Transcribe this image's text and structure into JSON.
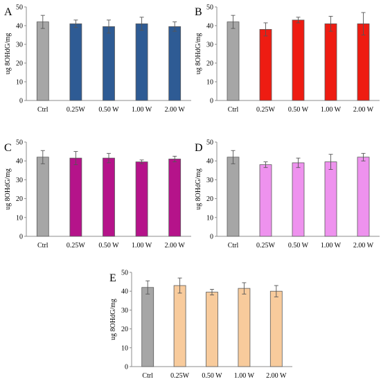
{
  "chart_data": [
    {
      "type": "bar",
      "panel_letter": "A",
      "ylabel": "ug 8OHdG/mg",
      "ylim": [
        0,
        50
      ],
      "yticks": [
        0,
        10,
        20,
        30,
        40,
        50
      ],
      "categories": [
        "Ctrl",
        "0.25W",
        "0.50 W",
        "1.00 W",
        "2.00 W"
      ],
      "values": [
        42,
        41,
        39.5,
        41,
        39.5
      ],
      "errors": [
        3.5,
        2,
        3.5,
        3.5,
        2.5
      ],
      "colors": [
        "#a6a6a6",
        "#2e5b94",
        "#2e5b94",
        "#2e5b94",
        "#2e5b94"
      ],
      "grid": false,
      "legend": "none"
    },
    {
      "type": "bar",
      "panel_letter": "B",
      "ylabel": "ug 8OHdG/mg",
      "ylim": [
        0,
        50
      ],
      "yticks": [
        0,
        10,
        20,
        30,
        40,
        50
      ],
      "categories": [
        "Ctrl",
        "0.25W",
        "0.50 W",
        "1.00 W",
        "2.00 W"
      ],
      "values": [
        42,
        38,
        43,
        41,
        41
      ],
      "errors": [
        3.5,
        3.5,
        1.5,
        4,
        6
      ],
      "colors": [
        "#a6a6a6",
        "#ee1c12",
        "#ee1c12",
        "#ee1c12",
        "#ee1c12"
      ],
      "grid": false,
      "legend": "none"
    },
    {
      "type": "bar",
      "panel_letter": "C",
      "ylabel": "ug 8OHdG/mg",
      "ylim": [
        0,
        50
      ],
      "yticks": [
        0,
        10,
        20,
        30,
        40,
        50
      ],
      "categories": [
        "Ctrl",
        "0.25W",
        "0.50 W",
        "1.00 W",
        "2.00 W"
      ],
      "values": [
        42,
        41.5,
        41.5,
        39.5,
        41
      ],
      "errors": [
        3.5,
        3.5,
        2.5,
        1,
        1.5
      ],
      "colors": [
        "#a6a6a6",
        "#b5138a",
        "#b5138a",
        "#b5138a",
        "#b5138a"
      ],
      "grid": false,
      "legend": "none"
    },
    {
      "type": "bar",
      "panel_letter": "D",
      "ylabel": "ug 8OHdG/mg",
      "ylim": [
        0,
        50
      ],
      "yticks": [
        0,
        10,
        20,
        30,
        40,
        50
      ],
      "categories": [
        "Ctrl",
        "0.25W",
        "0.50 W",
        "1.00 W",
        "2.00 W"
      ],
      "values": [
        42,
        38,
        39,
        39.5,
        42
      ],
      "errors": [
        3.5,
        1.5,
        2.5,
        4,
        2
      ],
      "colors": [
        "#a6a6a6",
        "#ee92ee",
        "#ee92ee",
        "#ee92ee",
        "#ee92ee"
      ],
      "grid": false,
      "legend": "none"
    },
    {
      "type": "bar",
      "panel_letter": "E",
      "ylabel": "ug 8OHdG/mg",
      "ylim": [
        0,
        50
      ],
      "yticks": [
        0,
        10,
        20,
        30,
        40,
        50
      ],
      "categories": [
        "Ctrl",
        "0.25W",
        "0.50 W",
        "1.00 W",
        "2.00 W"
      ],
      "values": [
        42,
        43,
        39.5,
        41.5,
        40
      ],
      "errors": [
        3.5,
        4,
        1.5,
        3,
        3
      ],
      "colors": [
        "#a6a6a6",
        "#f8cb9c",
        "#f8cb9c",
        "#f8cb9c",
        "#f8cb9c"
      ],
      "grid": false,
      "legend": "none"
    }
  ]
}
